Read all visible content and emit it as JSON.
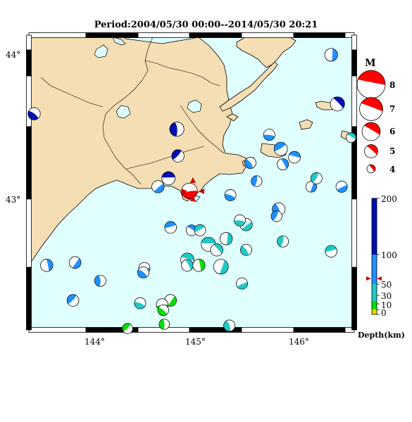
{
  "title": "Period:2004/05/30 00:00--2014/05/30 20:21",
  "axes": {
    "x_ticks": [
      "144°",
      "145°",
      "146°"
    ],
    "y_ticks": [
      "44°",
      "43°"
    ]
  },
  "magnitude_legend": {
    "heading": "M",
    "labels": [
      "8",
      "7",
      "6",
      "5",
      "4"
    ]
  },
  "depth_scale": {
    "label": "Depth(km)",
    "ticks": [
      "200",
      "100",
      "50",
      "30",
      "10",
      "0"
    ]
  },
  "colors": {
    "sea": "#e0ffff",
    "land": "#f5deb3",
    "shallow": "#00e000",
    "mid": "#20c8c8",
    "deep_blue": "#1e90ff",
    "very_deep": "#0010b0",
    "highlight": "#ff0000"
  },
  "chart_data": {
    "type": "map",
    "lon_range": [
      143.45,
      146.55
    ],
    "lat_range": [
      42.1,
      44.2
    ],
    "events": [
      {
        "lon": 144.98,
        "lat": 43.09,
        "mag": 5.5,
        "depth": 60,
        "color": "red"
      },
      {
        "lon": 143.5,
        "lat": 43.64,
        "mag": 4.8,
        "depth": 150,
        "color": "darkblue"
      },
      {
        "lon": 144.86,
        "lat": 43.53,
        "mag": 5.2,
        "depth": 150,
        "color": "darkblue"
      },
      {
        "lon": 144.87,
        "lat": 43.34,
        "mag": 4.8,
        "depth": 150,
        "color": "darkblue"
      },
      {
        "lon": 144.78,
        "lat": 43.18,
        "mag": 5.0,
        "depth": 150,
        "color": "darkblue"
      },
      {
        "lon": 146.39,
        "lat": 43.71,
        "mag": 5.2,
        "depth": 150,
        "color": "darkblue"
      },
      {
        "lon": 146.33,
        "lat": 44.06,
        "mag": 4.9,
        "depth": 100,
        "color": "blue"
      },
      {
        "lon": 144.68,
        "lat": 43.12,
        "mag": 4.8,
        "depth": 100,
        "color": "blue"
      },
      {
        "lon": 145.74,
        "lat": 43.49,
        "mag": 4.6,
        "depth": 100,
        "color": "blue"
      },
      {
        "lon": 145.56,
        "lat": 43.29,
        "mag": 4.6,
        "depth": 100,
        "color": "blue"
      },
      {
        "lon": 145.62,
        "lat": 43.16,
        "mag": 4.5,
        "depth": 100,
        "color": "blue"
      },
      {
        "lon": 145.85,
        "lat": 43.39,
        "mag": 5.0,
        "depth": 100,
        "color": "blue"
      },
      {
        "lon": 145.98,
        "lat": 43.33,
        "mag": 4.7,
        "depth": 100,
        "color": "blue"
      },
      {
        "lon": 145.87,
        "lat": 43.28,
        "mag": 4.6,
        "depth": 100,
        "color": "blue"
      },
      {
        "lon": 146.14,
        "lat": 43.12,
        "mag": 4.5,
        "depth": 100,
        "color": "blue"
      },
      {
        "lon": 146.43,
        "lat": 43.12,
        "mag": 4.6,
        "depth": 100,
        "color": "blue"
      },
      {
        "lon": 145.37,
        "lat": 43.06,
        "mag": 4.6,
        "depth": 100,
        "color": "blue"
      },
      {
        "lon": 145.83,
        "lat": 42.96,
        "mag": 4.9,
        "depth": 100,
        "color": "blue"
      },
      {
        "lon": 145.81,
        "lat": 42.91,
        "mag": 4.5,
        "depth": 100,
        "color": "blue"
      },
      {
        "lon": 144.8,
        "lat": 42.83,
        "mag": 4.7,
        "depth": 100,
        "color": "blue"
      },
      {
        "lon": 145.0,
        "lat": 42.81,
        "mag": 4.5,
        "depth": 100,
        "color": "blue"
      },
      {
        "lon": 143.62,
        "lat": 42.56,
        "mag": 4.8,
        "depth": 100,
        "color": "blue"
      },
      {
        "lon": 143.89,
        "lat": 42.58,
        "mag": 4.7,
        "depth": 100,
        "color": "blue"
      },
      {
        "lon": 144.55,
        "lat": 42.54,
        "mag": 4.6,
        "depth": 100,
        "color": "blue"
      },
      {
        "lon": 144.54,
        "lat": 42.51,
        "mag": 4.6,
        "depth": 100,
        "color": "blue"
      },
      {
        "lon": 144.13,
        "lat": 42.45,
        "mag": 4.6,
        "depth": 100,
        "color": "blue"
      },
      {
        "lon": 143.87,
        "lat": 42.31,
        "mag": 4.7,
        "depth": 100,
        "color": "blue"
      },
      {
        "lon": 145.16,
        "lat": 42.71,
        "mag": 5.2,
        "depth": 60,
        "color": "cyan"
      },
      {
        "lon": 145.24,
        "lat": 42.67,
        "mag": 4.8,
        "depth": 60,
        "color": "cyan"
      },
      {
        "lon": 145.33,
        "lat": 42.75,
        "mag": 4.8,
        "depth": 60,
        "color": "cyan"
      },
      {
        "lon": 145.52,
        "lat": 42.85,
        "mag": 4.8,
        "depth": 60,
        "color": "cyan"
      },
      {
        "lon": 145.46,
        "lat": 42.88,
        "mag": 4.6,
        "depth": 60,
        "color": "cyan"
      },
      {
        "lon": 145.52,
        "lat": 42.67,
        "mag": 4.6,
        "depth": 60,
        "color": "cyan"
      },
      {
        "lon": 145.87,
        "lat": 42.73,
        "mag": 4.6,
        "depth": 60,
        "color": "cyan"
      },
      {
        "lon": 145.08,
        "lat": 42.81,
        "mag": 4.6,
        "depth": 60,
        "color": "cyan"
      },
      {
        "lon": 144.96,
        "lat": 42.6,
        "mag": 5.0,
        "depth": 60,
        "color": "cyan"
      },
      {
        "lon": 144.96,
        "lat": 42.56,
        "mag": 4.7,
        "depth": 60,
        "color": "cyan"
      },
      {
        "lon": 145.28,
        "lat": 42.55,
        "mag": 5.3,
        "depth": 60,
        "color": "cyan"
      },
      {
        "lon": 145.48,
        "lat": 42.43,
        "mag": 4.6,
        "depth": 60,
        "color": "cyan"
      },
      {
        "lon": 144.51,
        "lat": 42.29,
        "mag": 4.6,
        "depth": 60,
        "color": "cyan"
      },
      {
        "lon": 145.36,
        "lat": 42.13,
        "mag": 4.6,
        "depth": 60,
        "color": "cyan"
      },
      {
        "lon": 146.19,
        "lat": 43.18,
        "mag": 4.6,
        "depth": 60,
        "color": "cyan"
      },
      {
        "lon": 146.33,
        "lat": 42.66,
        "mag": 4.7,
        "depth": 60,
        "color": "cyan"
      },
      {
        "lon": 146.52,
        "lat": 43.47,
        "mag": 4.3,
        "depth": 60,
        "color": "cyan"
      },
      {
        "lon": 145.07,
        "lat": 42.56,
        "mag": 4.8,
        "depth": 20,
        "color": "green"
      },
      {
        "lon": 144.8,
        "lat": 42.31,
        "mag": 4.7,
        "depth": 20,
        "color": "green"
      },
      {
        "lon": 144.72,
        "lat": 42.28,
        "mag": 4.7,
        "depth": 20,
        "color": "green"
      },
      {
        "lon": 144.73,
        "lat": 42.24,
        "mag": 4.5,
        "depth": 20,
        "color": "green"
      },
      {
        "lon": 144.74,
        "lat": 42.14,
        "mag": 4.4,
        "depth": 20,
        "color": "green"
      },
      {
        "lon": 144.39,
        "lat": 42.11,
        "mag": 4.4,
        "depth": 20,
        "color": "green"
      }
    ]
  }
}
